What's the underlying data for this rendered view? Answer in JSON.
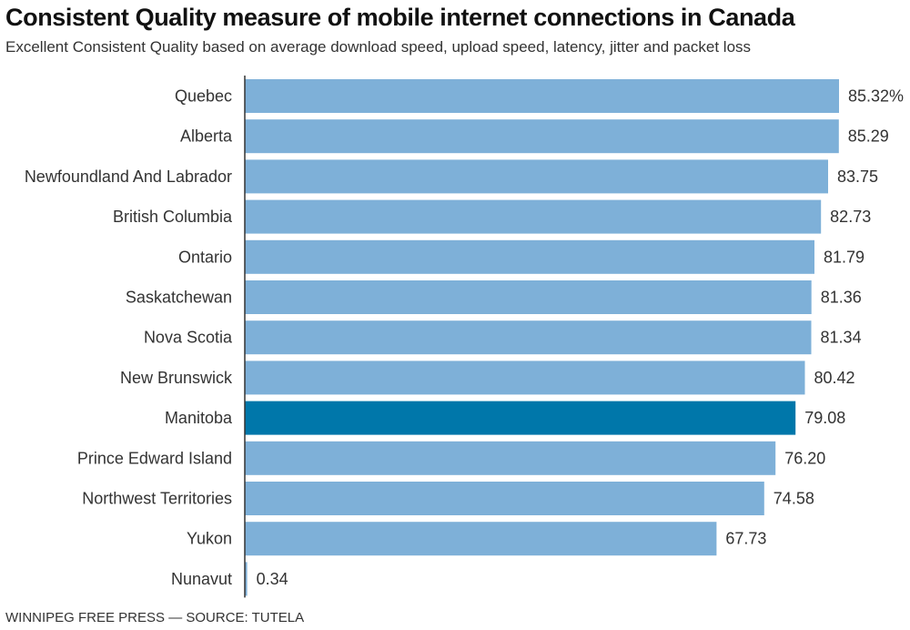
{
  "title": "Consistent Quality measure of mobile internet connections in Canada",
  "subtitle": "Excellent Consistent Quality based on average download speed, upload speed, latency, jitter and packet loss",
  "source": "WINNIPEG FREE PRESS — SOURCE: TUTELA",
  "colors": {
    "bar": "#7eb0d8",
    "highlight": "#0077aa",
    "axis": "#333333"
  },
  "chart_data": {
    "type": "bar",
    "orientation": "horizontal",
    "categories": [
      "Quebec",
      "Alberta",
      "Newfoundland And Labrador",
      "British Columbia",
      "Ontario",
      "Saskatchewan",
      "Nova Scotia",
      "New Brunswick",
      "Manitoba",
      "Prince Edward Island",
      "Northwest Territories",
      "Yukon",
      "Nunavut"
    ],
    "values": [
      85.32,
      85.29,
      83.75,
      82.73,
      81.79,
      81.36,
      81.34,
      80.42,
      79.08,
      76.2,
      74.58,
      67.73,
      0.34
    ],
    "labels": [
      "85.32%",
      "85.29",
      "83.75",
      "82.73",
      "81.79",
      "81.36",
      "81.34",
      "80.42",
      "79.08",
      "76.20",
      "74.58",
      "67.73",
      "0.34"
    ],
    "highlight": "Manitoba",
    "xlim": [
      0,
      85.32
    ],
    "grid": false,
    "xlabel": "",
    "ylabel": ""
  }
}
